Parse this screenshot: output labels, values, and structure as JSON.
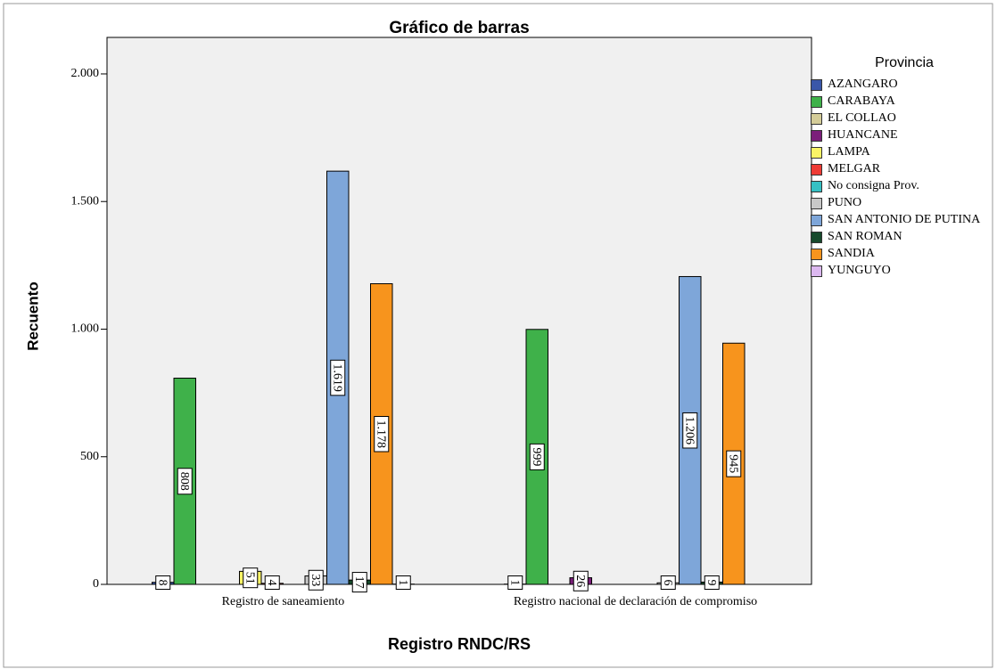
{
  "chart_data": {
    "type": "bar",
    "title": "Gráfico de barras",
    "y_label": "Recuento",
    "x_label": "Registro RNDC/RS",
    "legend_title": "Provincia",
    "categories": [
      "Registro de saneamiento",
      "Registro nacional de declaración de compromiso"
    ],
    "ylim": [
      0,
      2143
    ],
    "yticks": [
      0,
      500,
      {
        "value": 1000,
        "label": "1.000"
      },
      {
        "value": 1500,
        "label": "1.500"
      },
      {
        "value": 2000,
        "label": "2.000"
      }
    ],
    "series": [
      {
        "name": "AZANGARO",
        "color": "#3a57a9",
        "values": [
          8,
          1
        ]
      },
      {
        "name": "CARABAYA",
        "color": "#3fb14a",
        "values": [
          808,
          999
        ]
      },
      {
        "name": "EL COLLAO",
        "color": "#d4cc98",
        "values": [
          null,
          null
        ]
      },
      {
        "name": "HUANCANE",
        "color": "#7b1f7a",
        "values": [
          null,
          26
        ]
      },
      {
        "name": "LAMPA",
        "color": "#fbf466",
        "values": [
          51,
          null
        ]
      },
      {
        "name": "MELGAR",
        "color": "#ee3b35",
        "values": [
          4,
          null
        ]
      },
      {
        "name": "No consigna Prov.",
        "color": "#36c1c4",
        "values": [
          null,
          null
        ]
      },
      {
        "name": "PUNO",
        "color": "#c8c8c8",
        "values": [
          33,
          6
        ]
      },
      {
        "name": "SAN ANTONIO DE PUTINA",
        "color": "#7ea6d9",
        "values": [
          1619,
          1206
        ],
        "value_labels": [
          "1.619",
          "1.206"
        ]
      },
      {
        "name": "SAN ROMAN",
        "color": "#174a2c",
        "values": [
          17,
          9
        ]
      },
      {
        "name": "SANDIA",
        "color": "#f7941d",
        "values": [
          1178,
          945
        ],
        "value_labels": [
          "1.178",
          "945"
        ]
      },
      {
        "name": "YUNGUYO",
        "color": "#dcb8f0",
        "values": [
          1,
          null
        ]
      }
    ]
  }
}
